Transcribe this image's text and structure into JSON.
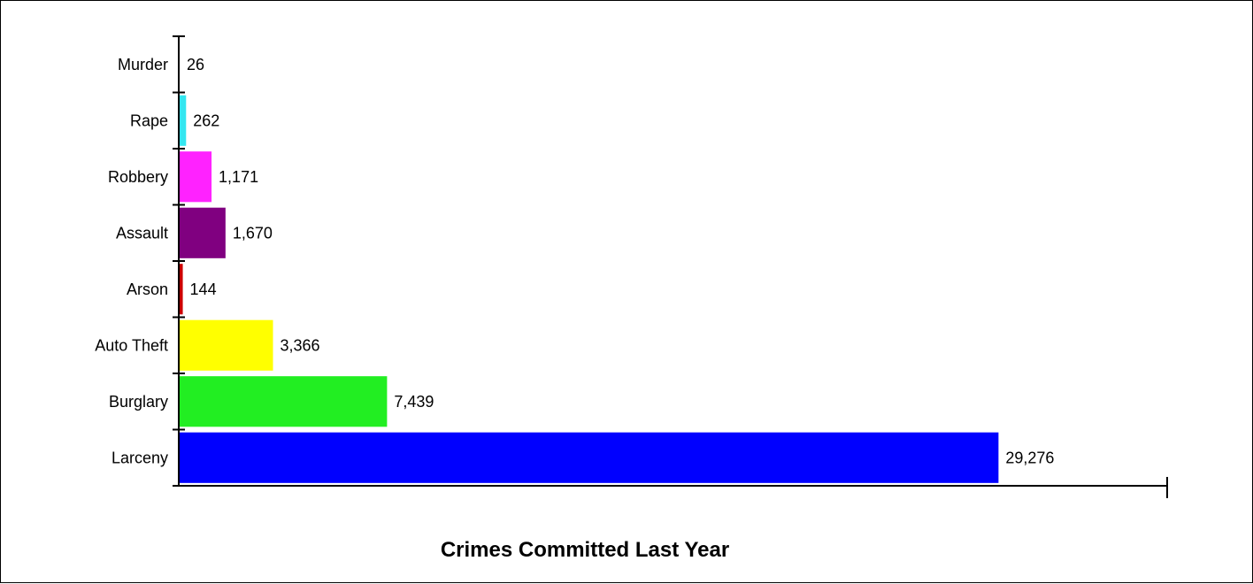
{
  "chart_data": {
    "type": "bar",
    "orientation": "horizontal",
    "title": "Crimes Committed Last Year",
    "xlabel": "",
    "ylabel": "",
    "categories": [
      "Murder",
      "Rape",
      "Robbery",
      "Assault",
      "Arson",
      "Auto Theft",
      "Burglary",
      "Larceny"
    ],
    "values": [
      26,
      262,
      1171,
      1670,
      144,
      3366,
      7439,
      29276
    ],
    "value_labels": [
      "26",
      "262",
      "1,171",
      "1,670",
      "144",
      "3,366",
      "7,439",
      "29,276"
    ],
    "colors": [
      "#000000",
      "#33e6f0",
      "#ff22ff",
      "#800080",
      "#cc0000",
      "#ffff00",
      "#22ee22",
      "#0000ff"
    ],
    "xlim": [
      0,
      35300
    ],
    "grid": false,
    "legend": "none"
  }
}
